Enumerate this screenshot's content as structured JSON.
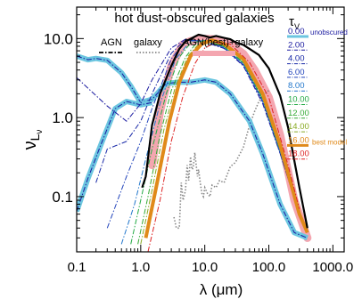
{
  "chart_data": {
    "type": "line",
    "title": "hot dust-obscured galaxies",
    "xlabel": "λ (μm)",
    "ylabel": "νLν",
    "xscale": "log",
    "yscale": "log",
    "xlim": [
      0.1,
      1500
    ],
    "ylim": [
      0.02,
      25
    ],
    "grid": false,
    "x_ticks": [
      0.1,
      1.0,
      10.0,
      100.0,
      1000.0
    ],
    "x_tick_labels": [
      "0.1",
      "1.0",
      "10.0",
      "100.0",
      "1000.0"
    ],
    "y_ticks": [
      0.1,
      1.0,
      10.0
    ],
    "y_tick_labels": [
      "0.1",
      "1.0",
      "10.0"
    ],
    "style_legend": {
      "items": [
        {
          "label": "AGN",
          "style": "dash-dot",
          "color": "#000000"
        },
        {
          "label": "galaxy",
          "style": "dotted",
          "color": "#888888"
        },
        {
          "label": "AGN(best)+galaxy",
          "style": "solid",
          "color": "#f4a6b0"
        }
      ]
    },
    "tau_legend": {
      "header_symbol": "τ",
      "header_sub": "V",
      "unobscured_label": "unobscured",
      "best_label": "best model",
      "items": [
        {
          "label": "0.00",
          "color": "#1a1aa0"
        },
        {
          "label": "2.00",
          "color": "#1a1aa0"
        },
        {
          "label": "4.00",
          "color": "#1a2aa8"
        },
        {
          "label": "6.00",
          "color": "#2244bb"
        },
        {
          "label": "8.00",
          "color": "#2277cc"
        },
        {
          "label": "10.00",
          "color": "#22aa44"
        },
        {
          "label": "12.00",
          "color": "#33aa33"
        },
        {
          "label": "14.00",
          "color": "#88aa22"
        },
        {
          "label": "16.00",
          "color": "#e08a1a"
        },
        {
          "label": "18.00",
          "color": "#dd2222"
        }
      ]
    },
    "series": [
      {
        "name": "0.00",
        "role": "unobscured",
        "color": "#1a1aa0",
        "highlight": "#6cc6e0",
        "x": [
          0.1,
          0.15,
          0.2,
          0.3,
          0.5,
          0.7,
          1.0,
          1.5,
          2.5,
          4,
          6,
          10,
          15,
          25,
          50,
          80,
          150,
          250,
          400
        ],
        "y": [
          6.0,
          5.4,
          5.6,
          5.3,
          3.7,
          2.5,
          1.55,
          1.7,
          2.7,
          2.8,
          2.8,
          3.0,
          2.8,
          2.0,
          0.9,
          0.35,
          0.08,
          0.035,
          0.03
        ]
      },
      {
        "name": "0.00",
        "role": "unobscured-lower",
        "color": "#1a1aa0",
        "highlight": "#6cc6e0",
        "x": [
          0.1,
          0.15,
          0.25,
          0.4,
          0.6,
          1.0,
          1.5
        ],
        "y": [
          0.065,
          0.17,
          0.5,
          1.3,
          1.6,
          1.45,
          1.55
        ]
      },
      {
        "name": "2.00",
        "color": "#1a1aa0",
        "x": [
          0.1,
          0.3,
          0.6,
          1,
          1.5,
          3,
          5,
          10,
          20,
          40,
          80,
          150,
          300
        ],
        "y": [
          3.2,
          1.4,
          0.9,
          1.5,
          3.0,
          7.6,
          9.8,
          9.0,
          7.5,
          4.5,
          1.5,
          0.35,
          0.06
        ]
      },
      {
        "name": "4.00",
        "color": "#1a2aa8",
        "x": [
          0.2,
          0.3,
          0.6,
          1,
          1.5,
          3,
          5,
          10,
          20,
          40,
          80,
          150,
          300
        ],
        "y": [
          0.15,
          0.4,
          0.5,
          0.9,
          2.0,
          6.5,
          9.7,
          9.2,
          7.6,
          4.6,
          1.6,
          0.35,
          0.06
        ]
      },
      {
        "name": "6.00",
        "color": "#2244bb",
        "x": [
          0.3,
          0.6,
          1,
          1.5,
          3,
          5,
          10,
          20,
          40,
          80,
          150,
          300
        ],
        "y": [
          0.04,
          0.18,
          0.5,
          1.3,
          5.5,
          9.5,
          9.3,
          7.7,
          4.7,
          1.6,
          0.36,
          0.06
        ]
      },
      {
        "name": "8.00",
        "color": "#2277cc",
        "x": [
          0.5,
          0.8,
          1.2,
          2,
          3.5,
          6,
          10,
          20,
          40,
          80,
          150,
          300
        ],
        "y": [
          0.025,
          0.08,
          0.3,
          1.5,
          5.5,
          9.3,
          9.4,
          7.8,
          4.8,
          1.7,
          0.37,
          0.06
        ]
      },
      {
        "name": "10.00",
        "color": "#22aa44",
        "x": [
          0.7,
          1.0,
          1.5,
          2.5,
          4,
          6,
          10,
          20,
          40,
          80,
          150,
          300
        ],
        "y": [
          0.025,
          0.09,
          0.4,
          2.0,
          5.8,
          8.8,
          9.4,
          7.9,
          4.9,
          1.7,
          0.38,
          0.06
        ]
      },
      {
        "name": "12.00",
        "color": "#33aa33",
        "x": [
          0.9,
          1.3,
          2,
          3,
          5,
          7,
          10,
          20,
          40,
          80,
          150,
          300
        ],
        "y": [
          0.025,
          0.1,
          0.6,
          2.2,
          5.8,
          8.3,
          9.4,
          8.0,
          5.0,
          1.8,
          0.4,
          0.06
        ]
      },
      {
        "name": "14.00",
        "color": "#88aa22",
        "x": [
          1.0,
          1.5,
          2.3,
          3.5,
          5.5,
          8,
          12,
          20,
          40,
          80,
          150,
          300
        ],
        "y": [
          0.025,
          0.12,
          0.7,
          2.5,
          6.0,
          8.5,
          9.5,
          8.3,
          5.2,
          1.9,
          0.42,
          0.06
        ]
      },
      {
        "name": "16.00",
        "role": "best",
        "color": "#e08a1a",
        "x": [
          1.2,
          1.8,
          2.8,
          4,
          6,
          9,
          13,
          20,
          40,
          80,
          150,
          300,
          400
        ],
        "y": [
          0.03,
          0.15,
          0.9,
          2.8,
          6.0,
          8.6,
          9.5,
          8.6,
          5.5,
          2.0,
          0.45,
          0.06,
          0.035
        ]
      },
      {
        "name": "18.00",
        "color": "#dd2222",
        "x": [
          1.3,
          2,
          3,
          4.5,
          7,
          10,
          15,
          25,
          50,
          100,
          200,
          300
        ],
        "y": [
          0.02,
          0.09,
          0.5,
          1.8,
          4.8,
          7.6,
          9.0,
          8.5,
          5.0,
          1.8,
          0.25,
          0.07
        ]
      }
    ],
    "agn_best_plus_galaxy": {
      "name": "AGN(best)+galaxy",
      "color": "#f4a6b0",
      "x": [
        1.5,
        2,
        3,
        4.5,
        6,
        8,
        10,
        15,
        25,
        40,
        60,
        100,
        150,
        250,
        400
      ],
      "y": [
        0.25,
        1.2,
        4.5,
        8.4,
        9.3,
        9.6,
        9.9,
        9.8,
        8.5,
        6.4,
        4.0,
        1.8,
        0.6,
        0.09,
        0.03
      ]
    },
    "observed_sed": {
      "color": "#000000",
      "x": [
        1.05,
        1.2,
        1.5,
        2,
        3,
        4,
        5,
        6,
        7,
        8,
        10,
        12,
        15,
        20,
        25,
        30,
        40,
        50,
        70,
        100,
        150,
        200,
        300,
        400
      ],
      "y": [
        0.13,
        0.18,
        0.8,
        2.0,
        4.5,
        7.4,
        9.2,
        9.9,
        10.6,
        11.2,
        10.8,
        10.3,
        10.8,
        10.2,
        9.8,
        9.0,
        8.3,
        7.4,
        6.2,
        4.2,
        1.9,
        0.75,
        0.13,
        0.04
      ]
    },
    "galaxy_template": {
      "color": "#888888",
      "x": [
        3.3,
        3.6,
        4.0,
        4.3,
        4.6,
        5.0,
        5.3,
        5.6,
        6.0,
        6.3,
        6.6,
        7.0,
        7.3,
        7.7,
        8.0,
        8.5,
        9.0,
        9.5,
        10,
        11,
        12,
        13,
        15,
        17,
        20,
        25,
        30,
        40,
        50,
        60,
        70,
        80,
        100
      ],
      "y": [
        0.055,
        0.04,
        0.04,
        0.15,
        0.09,
        0.12,
        0.25,
        0.16,
        0.32,
        0.22,
        0.23,
        0.36,
        0.26,
        0.18,
        0.22,
        0.15,
        0.11,
        0.1,
        0.13,
        0.11,
        0.1,
        0.14,
        0.13,
        0.16,
        0.15,
        0.24,
        0.27,
        0.42,
        0.8,
        1.2,
        1.6,
        1.9,
        2.2
      ]
    }
  }
}
